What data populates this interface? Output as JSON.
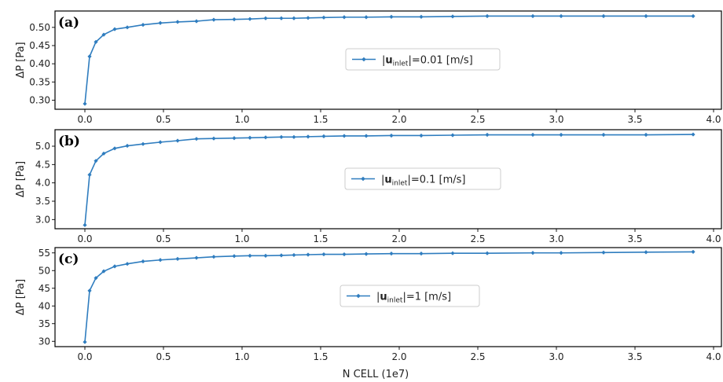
{
  "xlabel": "N CELL (1e7)",
  "chart_data": [
    {
      "type": "line",
      "panel_label": "(a)",
      "ylabel": "ΔP [Pa]",
      "legend": {
        "prefix": "|",
        "bold": "u",
        "sub": "inlet",
        "suffix": "|=0.01 [m/s]",
        "placement": "center-right"
      },
      "color": "#2f7dbf",
      "xlim": [
        -0.19,
        4.05
      ],
      "ylim": [
        0.275,
        0.545
      ],
      "yticks": [
        0.3,
        0.35,
        0.4,
        0.45,
        0.5
      ],
      "ytick_labels": [
        "0.30",
        "0.35",
        "0.40",
        "0.45",
        "0.50"
      ],
      "xticks": [
        0.0,
        0.5,
        1.0,
        1.5,
        2.0,
        2.5,
        3.0,
        3.5,
        4.0
      ],
      "xtick_labels": [
        "0.0",
        "0.5",
        "1.0",
        "1.5",
        "2.0",
        "2.5",
        "3.0",
        "3.5",
        "4.0"
      ],
      "x": [
        0.0,
        0.03,
        0.07,
        0.12,
        0.19,
        0.27,
        0.37,
        0.48,
        0.59,
        0.71,
        0.82,
        0.95,
        1.05,
        1.15,
        1.25,
        1.33,
        1.42,
        1.52,
        1.65,
        1.79,
        1.95,
        2.14,
        2.34,
        2.56,
        2.85,
        3.03,
        3.3,
        3.57,
        3.87
      ],
      "y": [
        0.29,
        0.42,
        0.46,
        0.48,
        0.495,
        0.5,
        0.507,
        0.512,
        0.515,
        0.517,
        0.521,
        0.522,
        0.523,
        0.525,
        0.525,
        0.525,
        0.526,
        0.527,
        0.528,
        0.528,
        0.529,
        0.529,
        0.53,
        0.531,
        0.531,
        0.531,
        0.531,
        0.531,
        0.531
      ]
    },
    {
      "type": "line",
      "panel_label": "(b)",
      "ylabel": "ΔP [Pa]",
      "legend": {
        "prefix": "|",
        "bold": "u",
        "sub": "inlet",
        "suffix": "|=0.1 [m/s]",
        "placement": "center-right"
      },
      "color": "#2f7dbf",
      "xlim": [
        -0.19,
        4.05
      ],
      "ylim": [
        2.75,
        5.45
      ],
      "yticks": [
        3.0,
        3.5,
        4.0,
        4.5,
        5.0
      ],
      "ytick_labels": [
        "3.0",
        "3.5",
        "4.0",
        "4.5",
        "5.0"
      ],
      "xticks": [
        0.0,
        0.5,
        1.0,
        1.5,
        2.0,
        2.5,
        3.0,
        3.5,
        4.0
      ],
      "xtick_labels": [
        "0.0",
        "0.5",
        "1.0",
        "1.5",
        "2.0",
        "2.5",
        "3.0",
        "3.5",
        "4.0"
      ],
      "x": [
        0.0,
        0.03,
        0.07,
        0.12,
        0.19,
        0.27,
        0.37,
        0.48,
        0.59,
        0.71,
        0.82,
        0.95,
        1.05,
        1.15,
        1.25,
        1.33,
        1.42,
        1.52,
        1.65,
        1.79,
        1.95,
        2.14,
        2.34,
        2.56,
        2.85,
        3.03,
        3.3,
        3.57,
        3.87
      ],
      "y": [
        2.85,
        4.22,
        4.6,
        4.8,
        4.94,
        5.01,
        5.06,
        5.11,
        5.15,
        5.2,
        5.21,
        5.22,
        5.23,
        5.24,
        5.25,
        5.25,
        5.26,
        5.27,
        5.28,
        5.28,
        5.29,
        5.29,
        5.3,
        5.31,
        5.31,
        5.31,
        5.31,
        5.31,
        5.32
      ]
    },
    {
      "type": "line",
      "panel_label": "(c)",
      "ylabel": "ΔP [Pa]",
      "legend": {
        "prefix": "|",
        "bold": "u",
        "sub": "inlet",
        "suffix": "|=1 [m/s]",
        "placement": "center-right"
      },
      "color": "#2f7dbf",
      "xlim": [
        -0.19,
        4.05
      ],
      "ylim": [
        28.5,
        56.5
      ],
      "yticks": [
        30,
        35,
        40,
        45,
        50,
        55
      ],
      "ytick_labels": [
        "30",
        "35",
        "40",
        "45",
        "50",
        "55"
      ],
      "xticks": [
        0.0,
        0.5,
        1.0,
        1.5,
        2.0,
        2.5,
        3.0,
        3.5,
        4.0
      ],
      "xtick_labels": [
        "0.0",
        "0.5",
        "1.0",
        "1.5",
        "2.0",
        "2.5",
        "3.0",
        "3.5",
        "4.0"
      ],
      "x": [
        0.0,
        0.03,
        0.07,
        0.12,
        0.19,
        0.27,
        0.37,
        0.48,
        0.59,
        0.71,
        0.82,
        0.95,
        1.05,
        1.15,
        1.25,
        1.33,
        1.42,
        1.52,
        1.65,
        1.79,
        1.95,
        2.14,
        2.34,
        2.56,
        2.85,
        3.03,
        3.3,
        3.57,
        3.87
      ],
      "y": [
        29.8,
        44.3,
        47.9,
        49.8,
        51.2,
        51.9,
        52.6,
        53.0,
        53.3,
        53.6,
        53.9,
        54.1,
        54.2,
        54.2,
        54.3,
        54.4,
        54.5,
        54.6,
        54.6,
        54.7,
        54.8,
        54.8,
        54.9,
        54.9,
        55.0,
        55.0,
        55.1,
        55.2,
        55.3
      ]
    }
  ]
}
